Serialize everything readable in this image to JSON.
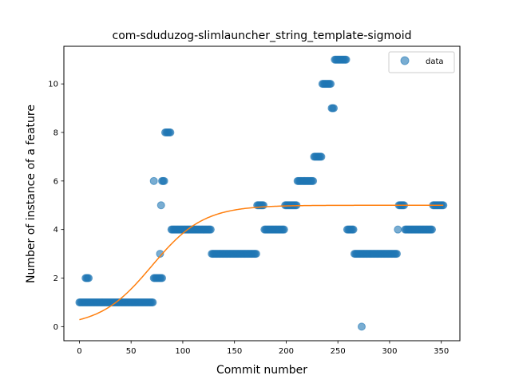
{
  "chart_data": {
    "type": "scatter",
    "title": "com-sduduzog-slimlauncher_string_template-sigmoid",
    "xlabel": "Commit number",
    "ylabel": "Number of instance of a feature",
    "xlim": [
      -15,
      368
    ],
    "ylim": [
      -0.58,
      11.55
    ],
    "xticks": [
      0,
      50,
      100,
      150,
      200,
      250,
      300,
      350
    ],
    "yticks": [
      0,
      2,
      4,
      6,
      8,
      10
    ],
    "grid": false,
    "legend_position": "top-right",
    "colors": {
      "scatter": "#1f77b4",
      "fit": "#ff7f0e"
    },
    "series": [
      {
        "name": "data",
        "kind": "scatter",
        "segments": [
          {
            "x_from": 0,
            "x_to": 71,
            "y": 1,
            "step": 1
          },
          {
            "x_from": 6,
            "x_to": 9,
            "y": 2,
            "step": 1
          },
          {
            "x_from": 72,
            "x_to": 80,
            "y": 2,
            "step": 1
          },
          {
            "x_from": 72,
            "x_to": 72,
            "y": 6,
            "step": 1
          },
          {
            "x_from": 78,
            "x_to": 78,
            "y": 3,
            "step": 1
          },
          {
            "x_from": 79,
            "x_to": 79,
            "y": 5,
            "step": 1
          },
          {
            "x_from": 80,
            "x_to": 82,
            "y": 6,
            "step": 1
          },
          {
            "x_from": 83,
            "x_to": 88,
            "y": 8,
            "step": 1
          },
          {
            "x_from": 89,
            "x_to": 127,
            "y": 4,
            "step": 1
          },
          {
            "x_from": 128,
            "x_to": 171,
            "y": 3,
            "step": 1
          },
          {
            "x_from": 172,
            "x_to": 178,
            "y": 5,
            "step": 1
          },
          {
            "x_from": 179,
            "x_to": 198,
            "y": 4,
            "step": 1
          },
          {
            "x_from": 199,
            "x_to": 210,
            "y": 5,
            "step": 1
          },
          {
            "x_from": 211,
            "x_to": 226,
            "y": 6,
            "step": 1
          },
          {
            "x_from": 227,
            "x_to": 234,
            "y": 7,
            "step": 1
          },
          {
            "x_from": 235,
            "x_to": 243,
            "y": 10,
            "step": 1
          },
          {
            "x_from": 244,
            "x_to": 246,
            "y": 9,
            "step": 1
          },
          {
            "x_from": 247,
            "x_to": 258,
            "y": 11,
            "step": 1
          },
          {
            "x_from": 259,
            "x_to": 265,
            "y": 4,
            "step": 1
          },
          {
            "x_from": 266,
            "x_to": 307,
            "y": 3,
            "step": 1
          },
          {
            "x_from": 273,
            "x_to": 273,
            "y": 0,
            "step": 1
          },
          {
            "x_from": 308,
            "x_to": 308,
            "y": 4,
            "step": 1
          },
          {
            "x_from": 309,
            "x_to": 314,
            "y": 5,
            "step": 1
          },
          {
            "x_from": 315,
            "x_to": 341,
            "y": 4,
            "step": 1
          },
          {
            "x_from": 342,
            "x_to": 352,
            "y": 5,
            "step": 1
          }
        ]
      },
      {
        "kind": "line",
        "function": "sigmoid",
        "params": {
          "L": 5.0,
          "k": 0.04,
          "x0": 70,
          "y0": 0.0
        },
        "x_range": [
          0,
          352
        ]
      }
    ]
  }
}
